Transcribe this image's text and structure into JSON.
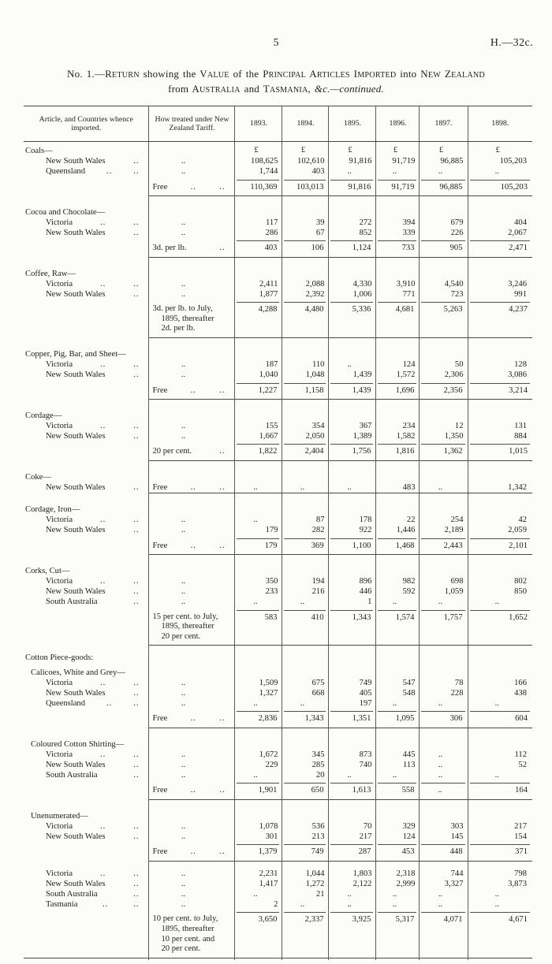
{
  "page": {
    "page_number": "5",
    "doc_code": "H.—32c.",
    "title_line1": "No. 1.—RETURN showing the VALUE of the PRINCIPAL ARTICLES IMPORTED into NEW ZEALAND",
    "title_line2_normal": "from AUSTRALIA and TASMANIA, ",
    "title_line2_italic": "&c.—continued."
  },
  "table": {
    "col_headers": [
      "Article, and Countries whence imported.",
      "How treated under New Zealand Tariff.",
      "1893.",
      "1894.",
      "1895.",
      "1896.",
      "1897.",
      "1898."
    ],
    "currency": "£",
    "sections": [
      {
        "title": "Coals—",
        "indent": 0,
        "show_currency": true,
        "rows": [
          {
            "country": "New South Wales",
            "dots": 1,
            "tariff": "..",
            "values": [
              "108,625",
              "102,610",
              "91,816",
              "91,719",
              "96,885",
              "105,203"
            ]
          },
          {
            "country": "Queensland",
            "dots": 2,
            "tariff": "..",
            "values": [
              "1,744",
              "403",
              "..",
              "..",
              "..",
              ".."
            ]
          }
        ],
        "total": {
          "tariff": "Free",
          "tariff_dots": 2,
          "values": [
            "110,369",
            "103,013",
            "91,816",
            "91,719",
            "96,885",
            "105,203"
          ]
        }
      },
      {
        "title": "Cocoa and Chocolate—",
        "indent": 0,
        "rows": [
          {
            "country": "Victoria",
            "dots": 2,
            "tariff": "..",
            "values": [
              "117",
              "39",
              "272",
              "394",
              "679",
              "404"
            ]
          },
          {
            "country": "New South Wales",
            "dots": 1,
            "tariff": "..",
            "values": [
              "286",
              "67",
              "852",
              "339",
              "226",
              "2,067"
            ]
          }
        ],
        "total": {
          "tariff": "3d. per lb.",
          "tariff_dots": 1,
          "values": [
            "403",
            "106",
            "1,124",
            "733",
            "905",
            "2,471"
          ]
        }
      },
      {
        "title": "Coffee, Raw—",
        "indent": 0,
        "rows": [
          {
            "country": "Victoria",
            "dots": 2,
            "tariff": "..",
            "values": [
              "2,411",
              "2,088",
              "4,330",
              "3,910",
              "4,540",
              "3,246"
            ]
          },
          {
            "country": "New South Wales",
            "dots": 1,
            "tariff": "..",
            "values": [
              "1,877",
              "2,392",
              "1,006",
              "771",
              "723",
              "991"
            ]
          }
        ],
        "total": {
          "tariff": "3d. per lb. to July,\n1895, thereafter\n2d. per lb.",
          "tariff_dots": 0,
          "values": [
            "4,288",
            "4,480",
            "5,336",
            "4,681",
            "5,263",
            "4,237"
          ]
        }
      },
      {
        "title": "Copper, Pig, Bar, and Sheet—",
        "indent": 0,
        "rows": [
          {
            "country": "Victoria",
            "dots": 2,
            "tariff": "..",
            "values": [
              "187",
              "110",
              "..",
              "124",
              "50",
              "128"
            ]
          },
          {
            "country": "New South Wales",
            "dots": 1,
            "tariff": "..",
            "values": [
              "1,040",
              "1,048",
              "1,439",
              "1,572",
              "2,306",
              "3,086"
            ]
          }
        ],
        "total": {
          "tariff": "Free",
          "tariff_dots": 2,
          "values": [
            "1,227",
            "1,158",
            "1,439",
            "1,696",
            "2,356",
            "3,214"
          ]
        }
      },
      {
        "title": "Cordage—",
        "indent": 0,
        "rows": [
          {
            "country": "Victoria",
            "dots": 2,
            "tariff": "..",
            "values": [
              "155",
              "354",
              "367",
              "234",
              "12",
              "131"
            ]
          },
          {
            "country": "New South Wales",
            "dots": 1,
            "tariff": "..",
            "values": [
              "1,667",
              "2,050",
              "1,389",
              "1,582",
              "1,350",
              "884"
            ]
          }
        ],
        "total": {
          "tariff": "20 per cent.",
          "tariff_dots": 1,
          "values": [
            "1,822",
            "2,404",
            "1,756",
            "1,816",
            "1,362",
            "1,015"
          ]
        }
      },
      {
        "title": "Coke—",
        "indent": 0,
        "rows": [
          {
            "country": "New South Wales",
            "dots": 1,
            "tariff": "Free",
            "tariff_dots": 2,
            "values": [
              "..",
              "..",
              "..",
              "483",
              "..",
              "1,342"
            ]
          }
        ],
        "total": null
      },
      {
        "title": "Cordage, Iron—",
        "indent": 0,
        "rows": [
          {
            "country": "Victoria",
            "dots": 2,
            "tariff": "..",
            "values": [
              "..",
              "87",
              "178",
              "22",
              "254",
              "42"
            ]
          },
          {
            "country": "New South Wales",
            "dots": 1,
            "tariff": "..",
            "values": [
              "179",
              "282",
              "922",
              "1,446",
              "2,189",
              "2,059"
            ]
          }
        ],
        "total": {
          "tariff": "Free",
          "tariff_dots": 2,
          "values": [
            "179",
            "369",
            "1,100",
            "1,468",
            "2,443",
            "2,101"
          ]
        }
      },
      {
        "title": "Corks, Cut—",
        "indent": 0,
        "rows": [
          {
            "country": "Victoria",
            "dots": 2,
            "tariff": "..",
            "values": [
              "350",
              "194",
              "896",
              "982",
              "698",
              "802"
            ]
          },
          {
            "country": "New South Wales",
            "dots": 1,
            "tariff": "..",
            "values": [
              "233",
              "216",
              "446",
              "592",
              "1,059",
              "850"
            ]
          },
          {
            "country": "South Australia",
            "dots": 1,
            "tariff": "..",
            "values": [
              "..",
              "..",
              "1",
              "..",
              "..",
              ".."
            ]
          }
        ],
        "total": {
          "tariff": "15 per cent. to July,\n1895, thereafter\n20 per cent.",
          "tariff_dots": 0,
          "values": [
            "583",
            "410",
            "1,343",
            "1,574",
            "1,757",
            "1,652"
          ]
        }
      },
      {
        "group": "Cotton Piece-goods:",
        "title": "Calicoes, White and Grey—",
        "indent": 1,
        "rows": [
          {
            "country": "Victoria",
            "dots": 2,
            "tariff": "..",
            "values": [
              "1,509",
              "675",
              "749",
              "547",
              "78",
              "166"
            ]
          },
          {
            "country": "New South Wales",
            "dots": 1,
            "tariff": "..",
            "values": [
              "1,327",
              "668",
              "405",
              "548",
              "228",
              "438"
            ]
          },
          {
            "country": "Queensland",
            "dots": 2,
            "tariff": "..",
            "values": [
              "..",
              "..",
              "197",
              "..",
              "..",
              ".."
            ]
          }
        ],
        "total": {
          "tariff": "Free",
          "tariff_dots": 2,
          "values": [
            "2,836",
            "1,343",
            "1,351",
            "1,095",
            "306",
            "604"
          ]
        }
      },
      {
        "title": "Coloured Cotton Shirting—",
        "indent": 1,
        "rows": [
          {
            "country": "Victoria",
            "dots": 2,
            "tariff": "..",
            "values": [
              "1,672",
              "345",
              "873",
              "445",
              "..",
              "112"
            ]
          },
          {
            "country": "New South Wales",
            "dots": 1,
            "tariff": "..",
            "values": [
              "229",
              "285",
              "740",
              "113",
              "..",
              "52"
            ]
          },
          {
            "country": "South Australia",
            "dots": 1,
            "tariff": "..",
            "values": [
              "..",
              "20",
              "..",
              "..",
              "..",
              ".."
            ]
          }
        ],
        "total": {
          "tariff": "Free",
          "tariff_dots": 2,
          "values": [
            "1,901",
            "650",
            "1,613",
            "558",
            "..",
            "164"
          ]
        }
      },
      {
        "title": "Unenumerated—",
        "indent": 1,
        "rows": [
          {
            "country": "Victoria",
            "dots": 2,
            "tariff": "..",
            "values": [
              "1,078",
              "536",
              "70",
              "329",
              "303",
              "217"
            ]
          },
          {
            "country": "New South Wales",
            "dots": 1,
            "tariff": "..",
            "values": [
              "301",
              "213",
              "217",
              "124",
              "145",
              "154"
            ]
          }
        ],
        "total": {
          "tariff": "Free",
          "tariff_dots": 2,
          "values": [
            "1,379",
            "749",
            "287",
            "453",
            "448",
            "371"
          ]
        }
      },
      {
        "title": null,
        "indent": 0,
        "rows": [
          {
            "country": "Victoria",
            "dots": 2,
            "tariff": "..",
            "values": [
              "2,231",
              "1,044",
              "1,803",
              "2,318",
              "744",
              "798"
            ]
          },
          {
            "country": "New South Wales",
            "dots": 1,
            "tariff": "..",
            "values": [
              "1,417",
              "1,272",
              "2,122",
              "2,999",
              "3,327",
              "3,873"
            ]
          },
          {
            "country": "South Australia",
            "dots": 1,
            "tariff": "..",
            "values": [
              "..",
              "21",
              "..",
              "..",
              "..",
              ".."
            ]
          },
          {
            "country": "Tasmania",
            "dots": 2,
            "tariff": "..",
            "values": [
              "2",
              "..",
              "..",
              "..",
              "..",
              ".."
            ]
          }
        ],
        "total": {
          "tariff": "10 per cent. to July,\n1895, thereafter\n10 per cent. and\n20 per cent.",
          "tariff_dots": 0,
          "values": [
            "3,650",
            "2,337",
            "3,925",
            "5,317",
            "4,071",
            "4,671"
          ]
        }
      }
    ]
  }
}
